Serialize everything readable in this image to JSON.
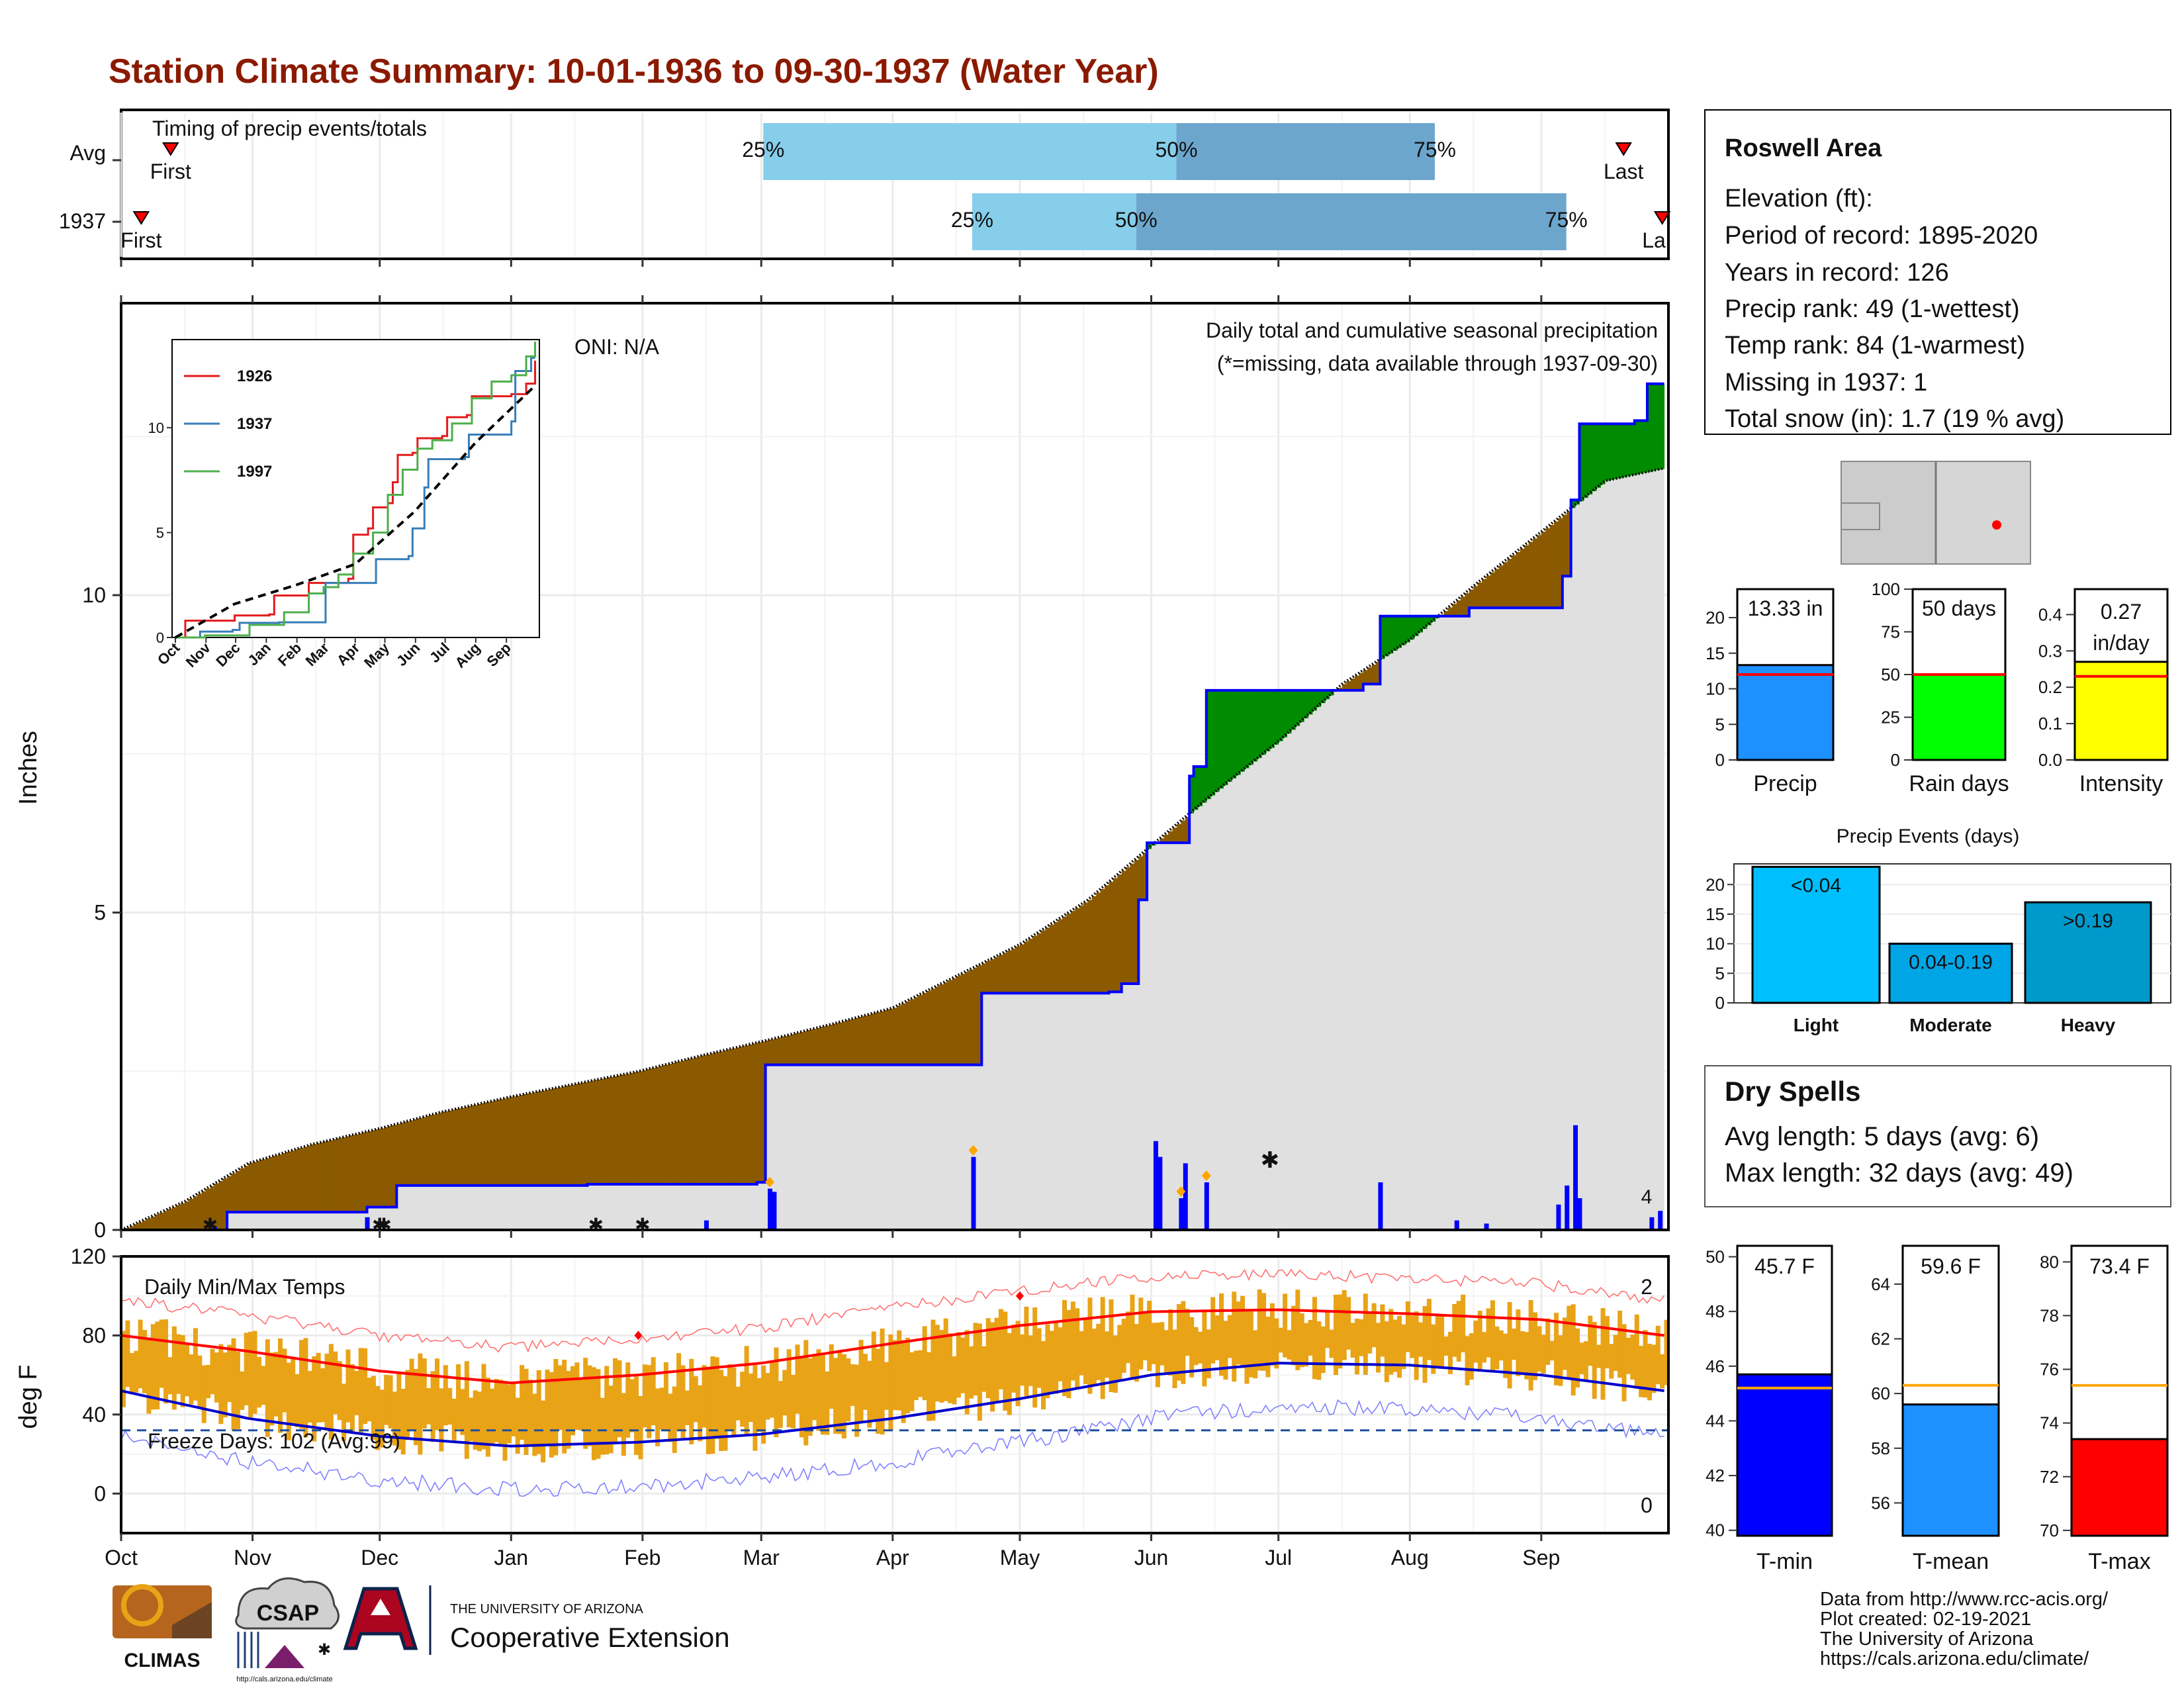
{
  "title": "Station Climate Summary: 10-01-1936 to 09-30-1937 (Water Year)",
  "colors": {
    "title": "#8B1A00",
    "light_blue": "#87CEEB",
    "mid_blue": "#6CA6CD",
    "brown": "#8B5A00",
    "green": "#008B00",
    "gray_fill": "#E0E0E0",
    "precip_line": "#0000FF",
    "temp_bar": "#E8A317",
    "avg_max": "#FF0000",
    "avg_min": "#0000CD",
    "orange_ref": "#FFA500",
    "dry_red": "#A52A2A"
  },
  "timing": {
    "title": "Timing of precip events/totals",
    "rows": [
      {
        "label": "Avg",
        "first_label": "First",
        "last_label": "Last",
        "first": 0.032,
        "last": 0.971,
        "q25": 0.415,
        "q50": 0.682,
        "q75": 0.849,
        "q25_label": "25%",
        "q50_label": "50%",
        "q75_label": "75%"
      },
      {
        "label": "1937",
        "first_label": "First",
        "last_label": "La",
        "first": 0.013,
        "last": 0.996,
        "q25": 0.55,
        "q50": 0.656,
        "q75": 0.934,
        "q25_label": "25%",
        "q50_label": "50%",
        "q75_label": "75%"
      }
    ]
  },
  "precip": {
    "ylabel": "Inches",
    "yticks": [
      "0",
      "5",
      "10"
    ],
    "header": "Daily total and cumulative seasonal precipitation",
    "missing_note": "(*=missing, data available through 1937-09-30)",
    "oni": "ONI: N/A",
    "missing_count_label": "4"
  },
  "chart_data": [
    {
      "type": "area",
      "name": "cumulative-precipitation",
      "ylabel": "Inches",
      "ylim": [
        0,
        14.6
      ],
      "x_months": [
        "Oct",
        "Nov",
        "Dec",
        "Jan",
        "Feb",
        "Mar",
        "Apr",
        "May",
        "Jun",
        "Jul",
        "Aug",
        "Sep"
      ],
      "avg_cumulative": {
        "x_day": [
          0,
          15,
          30,
          45,
          61,
          75,
          92,
          107,
          122,
          137,
          153,
          168,
          182,
          197,
          212,
          228,
          242,
          258,
          273,
          288,
          304,
          320,
          335,
          350,
          364
        ],
        "y": [
          0,
          0.45,
          1.05,
          1.35,
          1.6,
          1.85,
          2.1,
          2.3,
          2.5,
          2.75,
          3.0,
          3.25,
          3.5,
          4.0,
          4.5,
          5.2,
          6.0,
          6.9,
          7.7,
          8.6,
          9.3,
          10.2,
          11.0,
          11.8,
          12.0
        ]
      },
      "obs_cumulative": {
        "steps": [
          [
            0,
            0
          ],
          [
            25,
            0.28
          ],
          [
            58,
            0.36
          ],
          [
            65,
            0.7
          ],
          [
            105,
            0.7
          ],
          [
            110,
            0.72
          ],
          [
            150,
            0.75
          ],
          [
            152,
            2.6
          ],
          [
            200,
            2.6
          ],
          [
            203,
            3.73
          ],
          [
            233,
            3.75
          ],
          [
            236,
            3.88
          ],
          [
            240,
            5.2
          ],
          [
            242,
            6.1
          ],
          [
            252,
            7.15
          ],
          [
            253,
            7.3
          ],
          [
            256,
            8.5
          ],
          [
            293,
            8.6
          ],
          [
            297,
            9.67
          ],
          [
            318,
            9.8
          ],
          [
            340,
            10.3
          ],
          [
            342,
            11.5
          ],
          [
            344,
            12.7
          ],
          [
            357,
            12.75
          ],
          [
            360,
            13.33
          ],
          [
            364,
            13.33
          ]
        ]
      },
      "daily_precip": [
        {
          "day": 22,
          "value": 0.05
        },
        {
          "day": 58,
          "value": 0.2
        },
        {
          "day": 110,
          "value": 0.02
        },
        {
          "day": 138,
          "value": 0.15
        },
        {
          "day": 153,
          "value": 0.65
        },
        {
          "day": 154,
          "value": 0.6
        },
        {
          "day": 201,
          "value": 1.15
        },
        {
          "day": 244,
          "value": 1.4
        },
        {
          "day": 245,
          "value": 1.15
        },
        {
          "day": 250,
          "value": 0.5
        },
        {
          "day": 251,
          "value": 1.05
        },
        {
          "day": 256,
          "value": 0.75
        },
        {
          "day": 297,
          "value": 0.75
        },
        {
          "day": 315,
          "value": 0.15
        },
        {
          "day": 322,
          "value": 0.1
        },
        {
          "day": 339,
          "value": 0.4
        },
        {
          "day": 341,
          "value": 0.7
        },
        {
          "day": 343,
          "value": 1.65
        },
        {
          "day": 344,
          "value": 0.5
        },
        {
          "day": 361,
          "value": 0.2
        },
        {
          "day": 363,
          "value": 0.3
        }
      ],
      "snow_days": [
        21,
        61,
        62,
        112,
        123
      ],
      "missing_day": 271,
      "heavy_marker_days": [
        153,
        201,
        250,
        256
      ]
    },
    {
      "type": "line",
      "name": "inset-cumulative-comparison",
      "x_months": [
        "Oct",
        "Nov",
        "Dec",
        "Jan",
        "Feb",
        "Mar",
        "Apr",
        "May",
        "Jun",
        "Jul",
        "Aug",
        "Sep"
      ],
      "yticks": [
        0,
        5,
        10
      ],
      "ylim": [
        0,
        14.2
      ],
      "series": [
        {
          "name": "1926",
          "color": "#E41A1C",
          "points": [
            [
              0,
              0
            ],
            [
              10,
              0.8
            ],
            [
              60,
              1.05
            ],
            [
              95,
              1.1
            ],
            [
              100,
              2.0
            ],
            [
              130,
              2.0
            ],
            [
              135,
              2.6
            ],
            [
              175,
              2.8
            ],
            [
              180,
              4.9
            ],
            [
              195,
              5.2
            ],
            [
              200,
              6.2
            ],
            [
              215,
              6.4
            ],
            [
              220,
              7.4
            ],
            [
              225,
              8.7
            ],
            [
              240,
              8.8
            ],
            [
              245,
              9.5
            ],
            [
              270,
              9.6
            ],
            [
              275,
              10.5
            ],
            [
              295,
              10.6
            ],
            [
              300,
              11.5
            ],
            [
              340,
              11.6
            ],
            [
              355,
              12.1
            ],
            [
              364,
              13.2
            ]
          ]
        },
        {
          "name": "1937",
          "color": "#377EB8",
          "points": [
            [
              0,
              0
            ],
            [
              25,
              0.28
            ],
            [
              58,
              0.36
            ],
            [
              65,
              0.7
            ],
            [
              105,
              0.72
            ],
            [
              152,
              2.6
            ],
            [
              200,
              2.6
            ],
            [
              203,
              3.73
            ],
            [
              236,
              3.88
            ],
            [
              240,
              5.2
            ],
            [
              252,
              7.15
            ],
            [
              256,
              8.5
            ],
            [
              293,
              8.6
            ],
            [
              297,
              9.67
            ],
            [
              340,
              10.3
            ],
            [
              344,
              12.7
            ],
            [
              360,
              13.33
            ],
            [
              364,
              13.33
            ]
          ]
        },
        {
          "name": "1997",
          "color": "#4DAF4A",
          "points": [
            [
              0,
              0
            ],
            [
              30,
              0.1
            ],
            [
              75,
              0.6
            ],
            [
              110,
              1.2
            ],
            [
              135,
              2.1
            ],
            [
              150,
              2.4
            ],
            [
              165,
              3.0
            ],
            [
              180,
              4.0
            ],
            [
              200,
              5.0
            ],
            [
              215,
              6.8
            ],
            [
              230,
              8.0
            ],
            [
              245,
              9.0
            ],
            [
              260,
              9.4
            ],
            [
              280,
              10.2
            ],
            [
              300,
              11.4
            ],
            [
              320,
              12.2
            ],
            [
              340,
              12.5
            ],
            [
              355,
              13.4
            ],
            [
              364,
              14.1
            ]
          ]
        },
        {
          "name": "avg",
          "color": "#000000",
          "dashed": true,
          "points": [
            [
              0,
              0
            ],
            [
              60,
              1.6
            ],
            [
              122,
              2.5
            ],
            [
              182,
              3.5
            ],
            [
              242,
              6.0
            ],
            [
              304,
              9.3
            ],
            [
              364,
              12.0
            ]
          ]
        }
      ]
    },
    {
      "type": "bar",
      "name": "summary-bars",
      "categories": [
        "Precip",
        "Rain days",
        "Intensity"
      ],
      "values": [
        13.33,
        50,
        0.27
      ],
      "averages": [
        12.0,
        50,
        0.23
      ],
      "value_labels": [
        "13.33 in",
        "50 days",
        "0.27 in/day"
      ],
      "yticks": [
        [
          "0",
          "5",
          "10",
          "15",
          "20"
        ],
        [
          "0",
          "25",
          "50",
          "75",
          "100"
        ],
        [
          "0.0",
          "0.1",
          "0.2",
          "0.3",
          "0.4"
        ]
      ],
      "ylims": [
        [
          0,
          24
        ],
        [
          0,
          100
        ],
        [
          0,
          0.47
        ]
      ],
      "colors": [
        "#1E90FF",
        "#00FF00",
        "#FFFF00"
      ]
    },
    {
      "type": "bar",
      "name": "precip-events",
      "title": "Precip Events (days)",
      "categories": [
        "Light",
        "Moderate",
        "Heavy"
      ],
      "values": [
        23,
        10,
        17
      ],
      "labels": [
        "<0.04",
        "0.04-0.19",
        ">0.19"
      ],
      "yticks": [
        "0",
        "5",
        "10",
        "15",
        "20"
      ],
      "ylim": [
        0,
        23.5
      ],
      "colors": [
        "#00BFFF",
        "#00A5E6",
        "#0099CC"
      ]
    },
    {
      "type": "bar",
      "name": "temperature-summary",
      "categories": [
        "T-min",
        "T-mean",
        "T-max"
      ],
      "values": [
        45.7,
        59.6,
        73.4
      ],
      "value_labels": [
        "45.7 F",
        "59.6 F",
        "73.4 F"
      ],
      "averages": [
        45.2,
        60.3,
        75.4
      ],
      "ylims": [
        [
          39.8,
          50.4
        ],
        [
          54.8,
          65.4
        ],
        [
          69.8,
          80.6
        ]
      ],
      "yticks": [
        [
          "40",
          "42",
          "44",
          "46",
          "48",
          "50"
        ],
        [
          "56",
          "58",
          "60",
          "62",
          "64"
        ],
        [
          "70",
          "72",
          "74",
          "76",
          "78",
          "80"
        ]
      ],
      "colors": [
        "#0000FF",
        "#1E90FF",
        "#FF0000"
      ]
    },
    {
      "type": "bar",
      "name": "daily-temperatures",
      "ylabel": "deg F",
      "ylim": [
        -20,
        120
      ],
      "yticks": [
        "0",
        "40",
        "80",
        "120"
      ],
      "x_months": [
        "Oct",
        "Nov",
        "Dec",
        "Jan",
        "Feb",
        "Mar",
        "Apr",
        "May",
        "Jun",
        "Jul",
        "Aug",
        "Sep"
      ],
      "avg_max_points": [
        [
          0,
          80
        ],
        [
          30,
          72
        ],
        [
          61,
          62
        ],
        [
          92,
          56
        ],
        [
          122,
          60
        ],
        [
          151,
          66
        ],
        [
          182,
          76
        ],
        [
          212,
          85
        ],
        [
          243,
          92
        ],
        [
          273,
          93
        ],
        [
          304,
          91
        ],
        [
          335,
          88
        ],
        [
          364,
          80
        ]
      ],
      "avg_min_points": [
        [
          0,
          52
        ],
        [
          30,
          38
        ],
        [
          61,
          29
        ],
        [
          92,
          24
        ],
        [
          122,
          26
        ],
        [
          151,
          30
        ],
        [
          182,
          38
        ],
        [
          212,
          48
        ],
        [
          243,
          60
        ],
        [
          273,
          66
        ],
        [
          304,
          65
        ],
        [
          335,
          60
        ],
        [
          364,
          52
        ]
      ],
      "freeze_line": 32,
      "record_high_count": "2",
      "record_low_count": "0"
    }
  ],
  "temps": {
    "title": "Daily Min/Max Temps",
    "freeze_text": "Freeze Days: 102 (Avg:99)",
    "ylabel": "deg F"
  },
  "station": {
    "name": "Roswell Area",
    "elevation": "Elevation (ft):",
    "period": "Period of record: 1895-2020",
    "years": "Years in record: 126",
    "precip_rank": "Precip rank: 49 (1-wettest)",
    "temp_rank": "Temp rank: 84 (1-warmest)",
    "missing": "Missing in 1937: 1",
    "snow": "Total snow (in): 1.7 (19 % avg)"
  },
  "dry_spells": {
    "title": "Dry Spells",
    "avg": "Avg length: 5 days (avg: 6)",
    "max": "Max length: 32 days (avg: 49)"
  },
  "footer": {
    "line1": "Data from http://www.rcc-acis.org/",
    "line2": "Plot created: 02-19-2021",
    "line3": "The University of Arizona",
    "line4": "https://cals.arizona.edu/climate/"
  },
  "logos": {
    "climas": "CLIMAS",
    "csap": "CSAP",
    "csap_url": "http://cals.arizona.edu/climate",
    "ua_small": "THE UNIVERSITY OF ARIZONA",
    "ua_big": "Cooperative Extension"
  }
}
